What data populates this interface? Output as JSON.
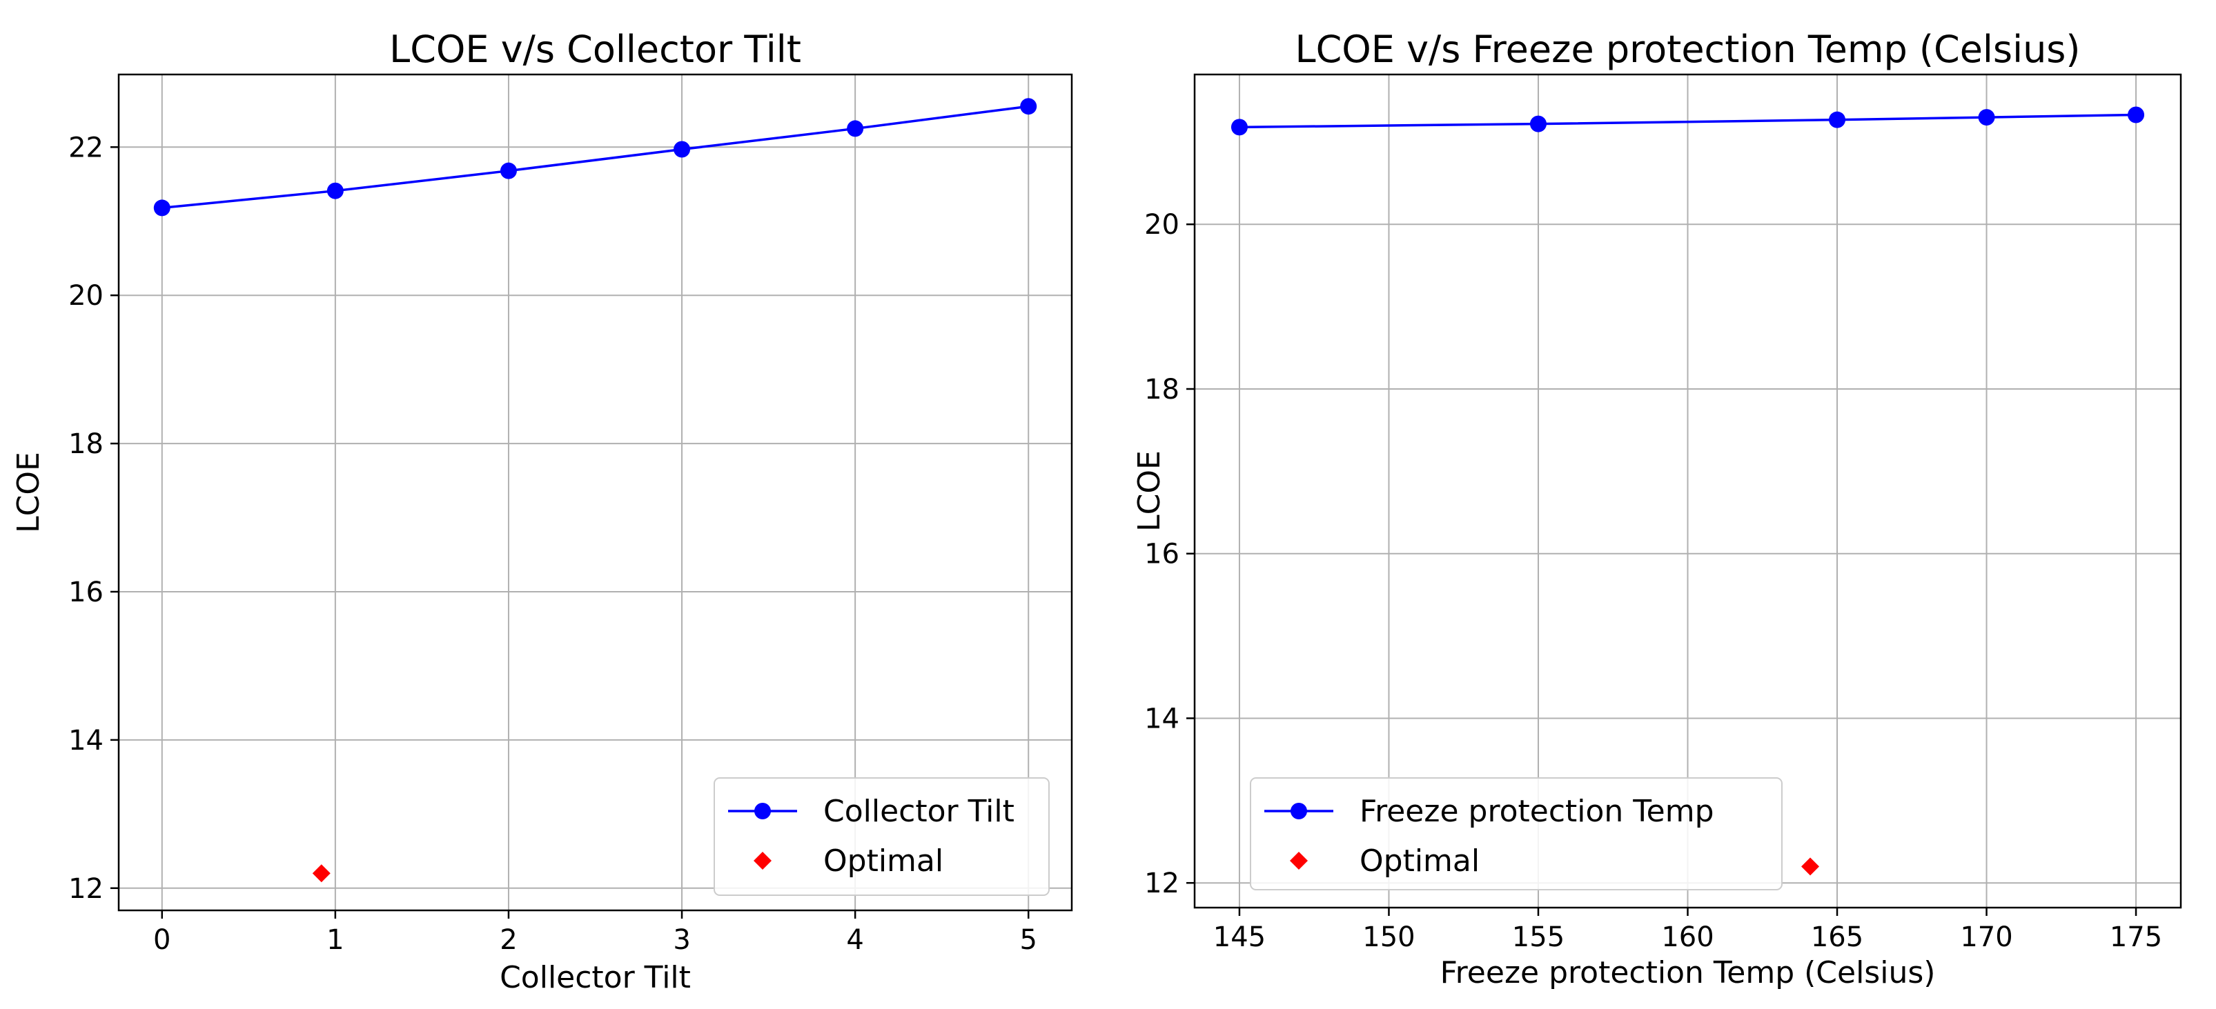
{
  "chart_data": [
    {
      "type": "line",
      "title": "LCOE v/s Collector Tilt",
      "xlabel": "Collector Tilt",
      "ylabel": "LCOE",
      "xlim": [
        -0.25,
        5.25
      ],
      "ylim": [
        11.7,
        22.98
      ],
      "xticks": [
        0,
        1,
        2,
        3,
        4,
        5
      ],
      "yticks": [
        12,
        14,
        16,
        18,
        20,
        22
      ],
      "grid": true,
      "legend_position": "lower-right",
      "series": [
        {
          "name": "Collector Tilt",
          "color": "#0000ff",
          "marker": "circle",
          "x": [
            0,
            1,
            2,
            3,
            4,
            5
          ],
          "y": [
            21.18,
            21.41,
            21.68,
            21.97,
            22.25,
            22.55
          ]
        },
        {
          "name": "Optimal",
          "color": "#ff0000",
          "marker": "diamond",
          "x": [
            0.92
          ],
          "y": [
            12.2
          ]
        }
      ]
    },
    {
      "type": "line",
      "title": "LCOE v/s Freeze protection Temp (Celsius)",
      "xlabel": "Freeze protection Temp (Celsius)",
      "ylabel": "LCOE",
      "xlim": [
        143.5,
        176.5
      ],
      "ylim": [
        11.7,
        21.82
      ],
      "xticks": [
        145,
        150,
        155,
        160,
        165,
        170,
        175
      ],
      "yticks": [
        12,
        14,
        16,
        18,
        20
      ],
      "grid": true,
      "legend_position": "lower-left",
      "series": [
        {
          "name": "Freeze protection Temp",
          "color": "#0000ff",
          "marker": "circle",
          "x": [
            145,
            155,
            165,
            170,
            175
          ],
          "y": [
            21.18,
            21.22,
            21.27,
            21.3,
            21.33
          ]
        },
        {
          "name": "Optimal",
          "color": "#ff0000",
          "marker": "diamond",
          "x": [
            164.1
          ],
          "y": [
            12.2
          ]
        }
      ]
    }
  ]
}
